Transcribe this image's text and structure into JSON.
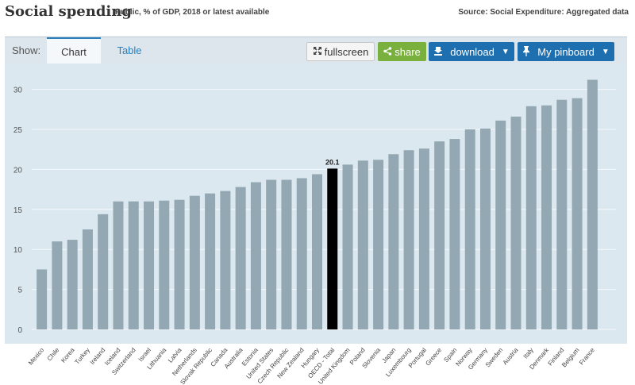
{
  "header": {
    "title": "Social spending",
    "subtitle": "Public, % of GDP, 2018 or latest available",
    "source": "Source: Social Expenditure: Aggregated data"
  },
  "toolbar": {
    "show_label": "Show:",
    "tabs": [
      {
        "label": "Chart",
        "active": true
      },
      {
        "label": "Table",
        "active": false
      }
    ],
    "fullscreen_label": "fullscreen",
    "share_label": "share",
    "download_label": "download",
    "pinboard_label": "My pinboard"
  },
  "colors": {
    "bar": "#93a8b3",
    "highlight": "#000000",
    "plot_bg": "#dce8f0",
    "accent_blue": "#1e6fb0",
    "share_green": "#7ab03e"
  },
  "chart_data": {
    "type": "bar",
    "title": "Social spending",
    "xlabel": "",
    "ylabel": "",
    "ylim": [
      0,
      32
    ],
    "yticks": [
      0,
      5,
      10,
      15,
      20,
      25,
      30
    ],
    "grid": true,
    "highlight_category": "OECD - Total",
    "highlight_label": "20.1",
    "categories": [
      "Mexico",
      "Chile",
      "Korea",
      "Turkey",
      "Ireland",
      "Iceland",
      "Switzerland",
      "Israel",
      "Lithuania",
      "Latvia",
      "Netherlands",
      "Slovak Republic",
      "Canada",
      "Australia",
      "Estonia",
      "United States",
      "Czech Republic",
      "New Zealand",
      "Hungary",
      "OECD - Total",
      "United Kingdom",
      "Poland",
      "Slovenia",
      "Japan",
      "Luxembourg",
      "Portugal",
      "Greece",
      "Spain",
      "Norway",
      "Germany",
      "Sweden",
      "Austria",
      "Italy",
      "Denmark",
      "Finland",
      "Belgium",
      "France"
    ],
    "values": [
      7.5,
      11.0,
      11.2,
      12.5,
      14.4,
      16.0,
      16.0,
      16.0,
      16.1,
      16.2,
      16.7,
      17.0,
      17.3,
      17.8,
      18.4,
      18.7,
      18.7,
      18.9,
      19.4,
      20.1,
      20.6,
      21.1,
      21.2,
      21.9,
      22.4,
      22.6,
      23.5,
      23.8,
      25.0,
      25.1,
      26.1,
      26.6,
      27.9,
      28.0,
      28.7,
      28.9,
      31.2
    ]
  }
}
